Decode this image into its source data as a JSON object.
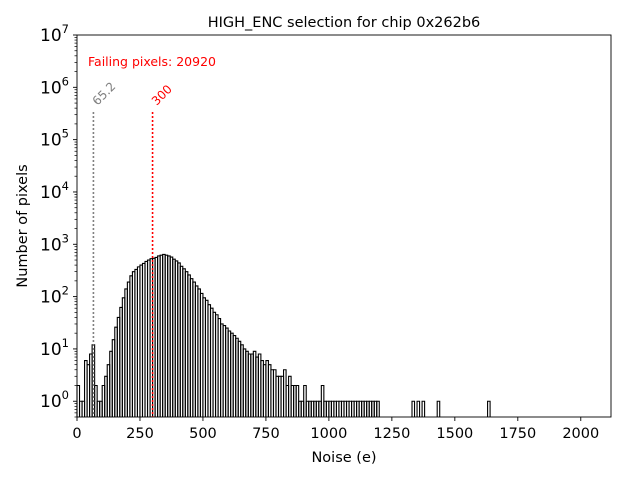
{
  "chart_data": {
    "type": "histogram",
    "title": "HIGH_ENC selection for chip 0x262b6",
    "xlabel": "Noise (e)",
    "ylabel": "Number of pixels",
    "xlim": [
      0,
      2120
    ],
    "ylim": [
      0.5,
      10000000
    ],
    "yscale": "log",
    "grid": false,
    "x_ticks": [
      0,
      250,
      500,
      750,
      1000,
      1250,
      1500,
      1750,
      2000
    ],
    "y_ticks": [
      {
        "value": 1,
        "base": "10",
        "exp": "0"
      },
      {
        "value": 10,
        "base": "10",
        "exp": "1"
      },
      {
        "value": 100,
        "base": "10",
        "exp": "2"
      },
      {
        "value": 1000,
        "base": "10",
        "exp": "3"
      },
      {
        "value": 10000,
        "base": "10",
        "exp": "4"
      },
      {
        "value": 100000,
        "base": "10",
        "exp": "5"
      },
      {
        "value": 1000000,
        "base": "10",
        "exp": "6"
      },
      {
        "value": 10000000,
        "base": "10",
        "exp": "7"
      }
    ],
    "annotation": "Failing pixels: 20920",
    "thresholds": [
      {
        "label": "65.2",
        "value": 65.2,
        "color": "#808080"
      },
      {
        "label": "300",
        "value": 300,
        "color": "#ff0000"
      }
    ],
    "bin_width": 10,
    "series": [
      {
        "step_color": "#000000",
        "x": [
          0,
          10,
          20,
          30,
          40,
          50,
          60,
          70,
          80,
          90,
          100,
          110,
          120,
          130,
          140,
          150,
          160,
          170,
          180,
          190,
          200,
          210,
          220,
          230,
          240,
          250,
          260,
          270,
          280,
          290,
          300,
          310,
          320,
          330,
          340,
          350,
          360,
          370,
          380,
          390,
          400,
          410,
          420,
          430,
          440,
          450,
          460,
          470,
          480,
          490,
          500,
          510,
          520,
          530,
          540,
          550,
          560,
          570,
          580,
          590,
          600,
          610,
          620,
          630,
          640,
          650,
          660,
          670,
          680,
          690,
          700,
          710,
          720,
          730,
          740,
          750,
          760,
          770,
          780,
          790,
          800,
          810,
          820,
          830,
          840,
          850,
          860,
          870,
          880,
          890,
          900,
          910,
          920,
          930,
          940,
          950,
          960,
          970,
          980,
          990,
          1000,
          1010,
          1020,
          1030,
          1040,
          1050,
          1060,
          1070,
          1080,
          1090,
          1100,
          1110,
          1120,
          1130,
          1140,
          1150,
          1160,
          1170,
          1180,
          1190,
          1330,
          1350,
          1370,
          1430,
          1630
        ],
        "values": [
          2,
          1,
          1,
          6,
          5,
          8,
          12,
          2,
          1,
          1,
          2,
          3,
          5,
          9,
          15,
          26,
          40,
          62,
          95,
          140,
          190,
          250,
          300,
          330,
          370,
          400,
          430,
          470,
          500,
          530,
          540,
          560,
          600,
          620,
          640,
          620,
          600,
          570,
          520,
          480,
          440,
          380,
          340,
          300,
          260,
          220,
          190,
          160,
          140,
          115,
          95,
          85,
          70,
          60,
          50,
          45,
          38,
          30,
          28,
          25,
          22,
          20,
          18,
          16,
          14,
          12,
          10,
          9,
          8,
          8,
          9,
          7,
          8,
          6,
          5,
          6,
          5,
          4,
          4,
          3,
          3,
          3,
          4,
          2,
          3,
          2,
          2,
          2,
          1,
          1,
          2,
          1,
          1,
          1,
          1,
          1,
          1,
          2,
          1,
          1,
          1,
          1,
          1,
          1,
          1,
          1,
          1,
          1,
          1,
          1,
          1,
          1,
          1,
          1,
          1,
          1,
          1,
          1,
          1,
          1,
          1,
          1,
          1,
          1,
          1
        ]
      }
    ]
  }
}
